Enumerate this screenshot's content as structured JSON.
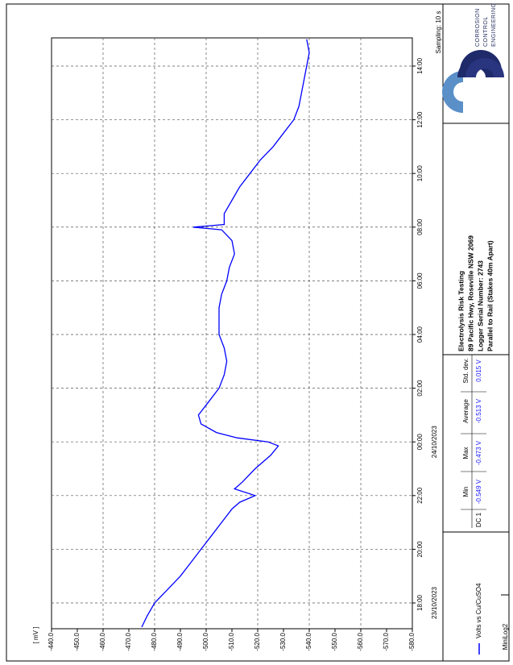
{
  "chart_data": {
    "type": "line",
    "ylabel": "[ mV ]",
    "sampling": "Sampling: 10 s",
    "dates": [
      "23/10/2023",
      "24/10/2023"
    ],
    "x": [
      17.1,
      17.5,
      18,
      18.5,
      19,
      19.5,
      20,
      20.5,
      21,
      21.5,
      21.75,
      22,
      22.25,
      22.5,
      23,
      23.5,
      23.85,
      24,
      24.15,
      24.35,
      24.67,
      25,
      25.5,
      26,
      26.5,
      27,
      27.5,
      28,
      28.5,
      29,
      29.5,
      30,
      30.5,
      31,
      31.5,
      31.9,
      32,
      32.1,
      32.5,
      33,
      33.5,
      34,
      34.5,
      35,
      35.5,
      36,
      36.5,
      37,
      37.5,
      38,
      38.5,
      39
    ],
    "series": [
      {
        "name": "Volts vs Cu/CuSO4",
        "color": "#0000ff",
        "values": [
          -475,
          -477,
          -480,
          -485,
          -490,
          -494,
          -498,
          -502,
          -506,
          -510,
          -513,
          -519,
          -511,
          -514,
          -519,
          -525,
          -528,
          -524,
          -512,
          -504,
          -498,
          -497,
          -501,
          -505,
          -507,
          -508,
          -507,
          -505,
          -505,
          -505,
          -506,
          -508,
          -509,
          -511,
          -510,
          -506,
          -495,
          -507,
          -507,
          -510,
          -513,
          -517,
          -521,
          -526,
          -530,
          -534,
          -536,
          -537,
          -538,
          -539,
          -540,
          -539
        ]
      }
    ],
    "xlim": [
      17.04,
      39.05
    ],
    "xticks": [
      {
        "value": 18,
        "label": "18:00"
      },
      {
        "value": 20,
        "label": "20:00"
      },
      {
        "value": 22,
        "label": "22:00"
      },
      {
        "value": 24,
        "label": "00:00"
      },
      {
        "value": 26,
        "label": "02:00"
      },
      {
        "value": 28,
        "label": "04:00"
      },
      {
        "value": 30,
        "label": "06:00"
      },
      {
        "value": 32,
        "label": "08:00"
      },
      {
        "value": 34,
        "label": "10:00"
      },
      {
        "value": 36,
        "label": "12:00"
      },
      {
        "value": 38,
        "label": "14:00"
      }
    ],
    "ylim": [
      -440,
      -580
    ],
    "yticks": [
      {
        "value": -440,
        "label": "-440.0"
      },
      {
        "value": -450,
        "label": "-450.0"
      },
      {
        "value": -460,
        "label": "-460.0"
      },
      {
        "value": -470,
        "label": "-470.0"
      },
      {
        "value": -480,
        "label": "-480.0"
      },
      {
        "value": -490,
        "label": "-490.0"
      },
      {
        "value": -500,
        "label": "-500.0"
      },
      {
        "value": -510,
        "label": "-510.0"
      },
      {
        "value": -520,
        "label": "-520.0"
      },
      {
        "value": -530,
        "label": "-530.0"
      },
      {
        "value": -540,
        "label": "-540.0"
      },
      {
        "value": -550,
        "label": "-550.0"
      },
      {
        "value": -560,
        "label": "-560.0"
      },
      {
        "value": -570,
        "label": "-570.0"
      },
      {
        "value": -580,
        "label": "-580.0"
      }
    ],
    "grid": true
  },
  "logo": {
    "lines": [
      "CORROSION",
      "CONTROL",
      "ENGINEERING"
    ]
  },
  "info": {
    "lines": [
      "Electrolysis Risk Testing",
      "89 Pacific Hwy, Roseville NSW 2069",
      "Logger Serial Number: 2743",
      "Parallel to Rail (Stakes 40m Apart)"
    ]
  },
  "stats": {
    "headers": [
      "Min",
      "Max",
      "Average",
      "Std. dev."
    ],
    "row_label": "DC 1",
    "values": [
      "-0.549 V",
      "-0.473 V",
      "-0.513 V",
      "0.015 V"
    ]
  },
  "footer": "MiniLog2"
}
